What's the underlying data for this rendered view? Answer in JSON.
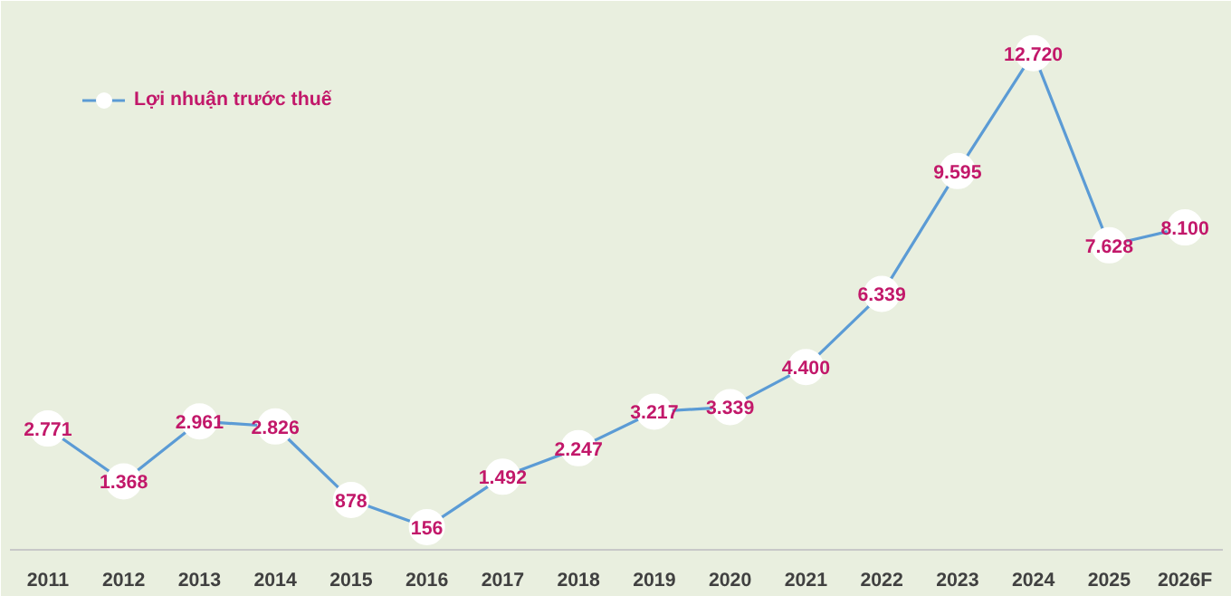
{
  "chart_data": {
    "type": "line",
    "categories": [
      "2011",
      "2012",
      "2013",
      "2014",
      "2015",
      "2016",
      "2017",
      "2018",
      "2019",
      "2020",
      "2021",
      "2022",
      "2023",
      "2024",
      "2025",
      "2026F"
    ],
    "series": [
      {
        "name": "Lợi nhuận trước thuế",
        "color": "#5b9bd5",
        "values": [
          2771,
          1368,
          2961,
          2826,
          878,
          156,
          1492,
          2247,
          3217,
          3339,
          4400,
          6339,
          9595,
          12720,
          7628,
          8100
        ],
        "value_labels": [
          "2.771",
          "1.368",
          "2.961",
          "2.826",
          "878",
          "156",
          "1.492",
          "2.247",
          "3.217",
          "3.339",
          "4.400",
          "6.339",
          "9.595",
          "12.720",
          "7.628",
          "8.100"
        ]
      }
    ],
    "marker": "circle",
    "legend": "top left",
    "grid": false,
    "tick_labels": "x"
  }
}
